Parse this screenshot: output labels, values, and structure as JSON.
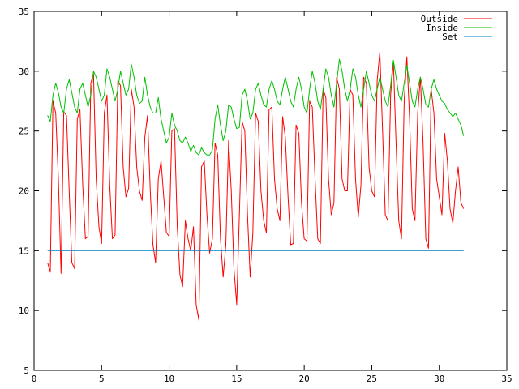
{
  "chart_data": {
    "type": "line",
    "xlim": [
      0,
      35
    ],
    "ylim": [
      5,
      35
    ],
    "xticks": [
      0,
      5,
      10,
      15,
      20,
      25,
      30,
      35
    ],
    "yticks": [
      5,
      10,
      15,
      20,
      25,
      30,
      35
    ],
    "grid": false,
    "legend_position": "top-right",
    "series": [
      {
        "name": "Outside",
        "color": "#ff0000",
        "points": [
          [
            1.0,
            14.0
          ],
          [
            1.2,
            13.2
          ],
          [
            1.4,
            27.5
          ],
          [
            1.6,
            26.5
          ],
          [
            1.8,
            21.0
          ],
          [
            2.0,
            13.1
          ],
          [
            2.2,
            26.6
          ],
          [
            2.4,
            26.3
          ],
          [
            2.6,
            20.0
          ],
          [
            2.8,
            14.0
          ],
          [
            3.0,
            13.5
          ],
          [
            3.2,
            26.0
          ],
          [
            3.4,
            26.8
          ],
          [
            3.6,
            20.5
          ],
          [
            3.8,
            16.0
          ],
          [
            4.0,
            16.2
          ],
          [
            4.2,
            29.0
          ],
          [
            4.4,
            29.8
          ],
          [
            4.6,
            21.0
          ],
          [
            4.8,
            17.0
          ],
          [
            5.0,
            15.6
          ],
          [
            5.2,
            26.5
          ],
          [
            5.4,
            28.0
          ],
          [
            5.6,
            20.5
          ],
          [
            5.8,
            16.0
          ],
          [
            6.0,
            16.3
          ],
          [
            6.2,
            29.2
          ],
          [
            6.4,
            28.8
          ],
          [
            6.6,
            22.0
          ],
          [
            6.8,
            19.5
          ],
          [
            7.0,
            20.2
          ],
          [
            7.2,
            28.5
          ],
          [
            7.4,
            27.0
          ],
          [
            7.6,
            22.0
          ],
          [
            7.8,
            20.0
          ],
          [
            8.0,
            19.2
          ],
          [
            8.2,
            24.5
          ],
          [
            8.4,
            26.3
          ],
          [
            8.6,
            20.0
          ],
          [
            8.8,
            15.5
          ],
          [
            9.0,
            14.0
          ],
          [
            9.2,
            21.0
          ],
          [
            9.4,
            22.5
          ],
          [
            9.6,
            19.5
          ],
          [
            9.8,
            16.5
          ],
          [
            10.0,
            16.2
          ],
          [
            10.2,
            25.0
          ],
          [
            10.4,
            25.2
          ],
          [
            10.6,
            17.0
          ],
          [
            10.8,
            13.0
          ],
          [
            11.0,
            12.0
          ],
          [
            11.2,
            17.5
          ],
          [
            11.4,
            16.0
          ],
          [
            11.6,
            15.0
          ],
          [
            11.8,
            17.0
          ],
          [
            12.0,
            10.5
          ],
          [
            12.2,
            9.2
          ],
          [
            12.4,
            22.0
          ],
          [
            12.6,
            22.5
          ],
          [
            12.8,
            18.0
          ],
          [
            13.0,
            14.8
          ],
          [
            13.2,
            16.0
          ],
          [
            13.4,
            24.0
          ],
          [
            13.6,
            23.0
          ],
          [
            13.8,
            16.0
          ],
          [
            14.0,
            12.8
          ],
          [
            14.2,
            15.5
          ],
          [
            14.4,
            24.2
          ],
          [
            14.6,
            20.0
          ],
          [
            14.8,
            13.5
          ],
          [
            15.0,
            10.5
          ],
          [
            15.2,
            18.0
          ],
          [
            15.4,
            25.8
          ],
          [
            15.6,
            25.0
          ],
          [
            15.8,
            18.0
          ],
          [
            16.0,
            12.8
          ],
          [
            16.2,
            16.5
          ],
          [
            16.4,
            26.5
          ],
          [
            16.6,
            25.8
          ],
          [
            16.8,
            20.0
          ],
          [
            17.0,
            17.5
          ],
          [
            17.2,
            16.5
          ],
          [
            17.4,
            26.8
          ],
          [
            17.6,
            27.0
          ],
          [
            17.8,
            21.0
          ],
          [
            18.0,
            18.5
          ],
          [
            18.2,
            17.5
          ],
          [
            18.4,
            26.2
          ],
          [
            18.6,
            24.5
          ],
          [
            18.8,
            19.5
          ],
          [
            19.0,
            15.5
          ],
          [
            19.2,
            15.6
          ],
          [
            19.4,
            25.5
          ],
          [
            19.6,
            24.8
          ],
          [
            19.8,
            19.0
          ],
          [
            20.0,
            16.0
          ],
          [
            20.2,
            15.8
          ],
          [
            20.4,
            27.5
          ],
          [
            20.6,
            27.0
          ],
          [
            20.8,
            21.0
          ],
          [
            21.0,
            16.0
          ],
          [
            21.2,
            15.6
          ],
          [
            21.4,
            28.5
          ],
          [
            21.6,
            27.8
          ],
          [
            21.8,
            21.0
          ],
          [
            22.0,
            18.0
          ],
          [
            22.2,
            19.0
          ],
          [
            22.4,
            29.5
          ],
          [
            22.6,
            28.5
          ],
          [
            22.8,
            21.0
          ],
          [
            23.0,
            20.0
          ],
          [
            23.2,
            20.0
          ],
          [
            23.4,
            28.5
          ],
          [
            23.6,
            28.0
          ],
          [
            23.8,
            21.0
          ],
          [
            24.0,
            17.8
          ],
          [
            24.2,
            20.5
          ],
          [
            24.4,
            29.5
          ],
          [
            24.6,
            29.0
          ],
          [
            24.8,
            22.0
          ],
          [
            25.0,
            20.0
          ],
          [
            25.2,
            19.5
          ],
          [
            25.4,
            29.2
          ],
          [
            25.6,
            31.6
          ],
          [
            25.8,
            25.0
          ],
          [
            26.0,
            18.0
          ],
          [
            26.2,
            17.5
          ],
          [
            26.4,
            28.0
          ],
          [
            26.6,
            30.8
          ],
          [
            26.8,
            24.0
          ],
          [
            27.0,
            17.5
          ],
          [
            27.2,
            16.0
          ],
          [
            27.4,
            27.5
          ],
          [
            27.6,
            31.2
          ],
          [
            27.8,
            26.0
          ],
          [
            28.0,
            18.5
          ],
          [
            28.2,
            17.5
          ],
          [
            28.4,
            26.5
          ],
          [
            28.6,
            29.5
          ],
          [
            28.8,
            24.0
          ],
          [
            29.0,
            16.0
          ],
          [
            29.2,
            15.2
          ],
          [
            29.4,
            28.5
          ],
          [
            29.6,
            26.5
          ],
          [
            29.8,
            21.0
          ],
          [
            30.0,
            19.5
          ],
          [
            30.2,
            18.0
          ],
          [
            30.4,
            24.8
          ],
          [
            30.6,
            22.5
          ],
          [
            30.8,
            18.5
          ],
          [
            31.0,
            17.3
          ],
          [
            31.2,
            20.0
          ],
          [
            31.4,
            22.0
          ],
          [
            31.6,
            19.0
          ],
          [
            31.8,
            18.5
          ]
        ]
      },
      {
        "name": "Inside",
        "color": "#00c000",
        "points": [
          [
            1.0,
            26.3
          ],
          [
            1.2,
            25.8
          ],
          [
            1.4,
            28.0
          ],
          [
            1.6,
            29.0
          ],
          [
            1.8,
            28.2
          ],
          [
            2.0,
            27.0
          ],
          [
            2.2,
            26.5
          ],
          [
            2.4,
            28.5
          ],
          [
            2.6,
            29.3
          ],
          [
            2.8,
            28.2
          ],
          [
            3.0,
            27.0
          ],
          [
            3.2,
            26.5
          ],
          [
            3.4,
            28.5
          ],
          [
            3.6,
            29.0
          ],
          [
            3.8,
            28.0
          ],
          [
            4.0,
            27.0
          ],
          [
            4.2,
            28.0
          ],
          [
            4.4,
            30.0
          ],
          [
            4.6,
            29.5
          ],
          [
            4.8,
            28.5
          ],
          [
            5.0,
            27.5
          ],
          [
            5.2,
            28.0
          ],
          [
            5.4,
            30.2
          ],
          [
            5.6,
            29.5
          ],
          [
            5.8,
            28.5
          ],
          [
            6.0,
            27.5
          ],
          [
            6.2,
            28.5
          ],
          [
            6.4,
            30.0
          ],
          [
            6.6,
            29.0
          ],
          [
            6.8,
            28.0
          ],
          [
            7.0,
            28.5
          ],
          [
            7.2,
            30.6
          ],
          [
            7.4,
            29.5
          ],
          [
            7.6,
            28.0
          ],
          [
            7.8,
            27.3
          ],
          [
            8.0,
            27.5
          ],
          [
            8.2,
            29.5
          ],
          [
            8.4,
            28.0
          ],
          [
            8.6,
            27.0
          ],
          [
            8.8,
            26.5
          ],
          [
            9.0,
            26.5
          ],
          [
            9.2,
            27.8
          ],
          [
            9.4,
            26.0
          ],
          [
            9.6,
            25.0
          ],
          [
            9.8,
            24.0
          ],
          [
            10.0,
            24.5
          ],
          [
            10.2,
            26.5
          ],
          [
            10.4,
            25.5
          ],
          [
            10.6,
            25.0
          ],
          [
            10.8,
            24.2
          ],
          [
            11.0,
            24.0
          ],
          [
            11.2,
            24.5
          ],
          [
            11.4,
            24.0
          ],
          [
            11.6,
            23.3
          ],
          [
            11.8,
            23.8
          ],
          [
            12.0,
            23.2
          ],
          [
            12.2,
            23.0
          ],
          [
            12.4,
            23.6
          ],
          [
            12.6,
            23.2
          ],
          [
            12.8,
            23.0
          ],
          [
            13.0,
            23.0
          ],
          [
            13.2,
            23.4
          ],
          [
            13.4,
            26.0
          ],
          [
            13.6,
            27.2
          ],
          [
            13.8,
            25.5
          ],
          [
            14.0,
            24.2
          ],
          [
            14.2,
            25.0
          ],
          [
            14.4,
            27.2
          ],
          [
            14.6,
            27.0
          ],
          [
            14.8,
            26.0
          ],
          [
            15.0,
            25.2
          ],
          [
            15.2,
            25.3
          ],
          [
            15.4,
            28.0
          ],
          [
            15.6,
            28.5
          ],
          [
            15.8,
            27.5
          ],
          [
            16.0,
            26.0
          ],
          [
            16.2,
            26.5
          ],
          [
            16.4,
            28.5
          ],
          [
            16.6,
            29.0
          ],
          [
            16.8,
            28.0
          ],
          [
            17.0,
            27.2
          ],
          [
            17.2,
            27.0
          ],
          [
            17.4,
            28.5
          ],
          [
            17.6,
            29.2
          ],
          [
            17.8,
            28.5
          ],
          [
            18.0,
            27.5
          ],
          [
            18.2,
            27.2
          ],
          [
            18.4,
            28.5
          ],
          [
            18.6,
            29.5
          ],
          [
            18.8,
            28.5
          ],
          [
            19.0,
            27.5
          ],
          [
            19.2,
            27.0
          ],
          [
            19.4,
            28.5
          ],
          [
            19.6,
            29.5
          ],
          [
            19.8,
            28.5
          ],
          [
            20.0,
            27.0
          ],
          [
            20.2,
            26.5
          ],
          [
            20.4,
            28.5
          ],
          [
            20.6,
            30.0
          ],
          [
            20.8,
            29.0
          ],
          [
            21.0,
            27.5
          ],
          [
            21.2,
            26.8
          ],
          [
            21.4,
            28.5
          ],
          [
            21.6,
            30.2
          ],
          [
            21.8,
            29.5
          ],
          [
            22.0,
            28.0
          ],
          [
            22.2,
            27.0
          ],
          [
            22.4,
            29.0
          ],
          [
            22.6,
            31.0
          ],
          [
            22.8,
            30.0
          ],
          [
            23.0,
            28.5
          ],
          [
            23.2,
            27.5
          ],
          [
            23.4,
            28.5
          ],
          [
            23.6,
            30.2
          ],
          [
            23.8,
            29.5
          ],
          [
            24.0,
            28.0
          ],
          [
            24.2,
            27.0
          ],
          [
            24.4,
            28.5
          ],
          [
            24.6,
            30.0
          ],
          [
            24.8,
            29.0
          ],
          [
            25.0,
            28.0
          ],
          [
            25.2,
            27.5
          ],
          [
            25.4,
            28.5
          ],
          [
            25.6,
            29.5
          ],
          [
            25.8,
            28.5
          ],
          [
            26.0,
            27.5
          ],
          [
            26.2,
            27.0
          ],
          [
            26.4,
            28.8
          ],
          [
            26.6,
            30.9
          ],
          [
            26.8,
            29.5
          ],
          [
            27.0,
            28.0
          ],
          [
            27.2,
            27.5
          ],
          [
            27.4,
            29.0
          ],
          [
            27.6,
            30.5
          ],
          [
            27.8,
            29.0
          ],
          [
            28.0,
            27.5
          ],
          [
            28.2,
            27.0
          ],
          [
            28.4,
            28.5
          ],
          [
            28.6,
            29.5
          ],
          [
            28.8,
            28.5
          ],
          [
            29.0,
            27.2
          ],
          [
            29.2,
            27.0
          ],
          [
            29.4,
            28.5
          ],
          [
            29.6,
            29.3
          ],
          [
            29.8,
            28.5
          ],
          [
            30.0,
            28.0
          ],
          [
            30.2,
            27.5
          ],
          [
            30.4,
            27.3
          ],
          [
            30.6,
            26.8
          ],
          [
            30.8,
            26.5
          ],
          [
            31.0,
            26.2
          ],
          [
            31.2,
            26.5
          ],
          [
            31.4,
            26.0
          ],
          [
            31.6,
            25.5
          ],
          [
            31.8,
            24.6
          ]
        ]
      },
      {
        "name": "Set",
        "color": "#0080c0",
        "points": [
          [
            1.0,
            15.0
          ],
          [
            31.8,
            15.0
          ]
        ]
      }
    ]
  }
}
